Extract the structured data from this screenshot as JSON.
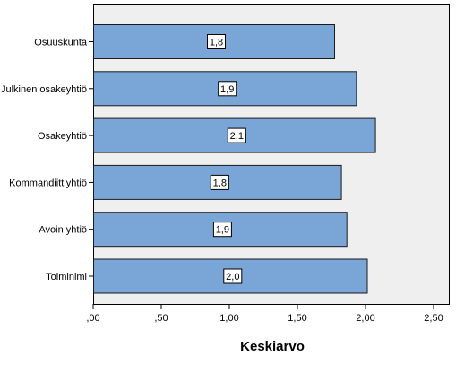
{
  "chart_data": {
    "type": "bar",
    "orientation": "horizontal",
    "categories": [
      "Osuuskunta",
      "Julkinen osakeyhtiö",
      "Osakeyhtiö",
      "Kommandiittiyhtiö",
      "Avoin yhtiö",
      "Toiminimi"
    ],
    "values": [
      1.77,
      1.93,
      2.07,
      1.82,
      1.86,
      2.01
    ],
    "data_labels": [
      "1,8",
      "1,9",
      "2,1",
      "1,8",
      "1,9",
      "2,0"
    ],
    "xlabel": "Keskiarvo",
    "ylabel": "",
    "title": "",
    "xlim": [
      0,
      2.6
    ],
    "x_ticks": [
      0,
      0.5,
      1.0,
      1.5,
      2.0,
      2.5
    ],
    "x_tick_labels": [
      ",00",
      ",50",
      "1,00",
      "1,50",
      "2,00",
      "2,50"
    ],
    "grid": false,
    "legend": "none",
    "colors": {
      "bar": "#79a6d6",
      "plot_background": "#efefef"
    }
  }
}
